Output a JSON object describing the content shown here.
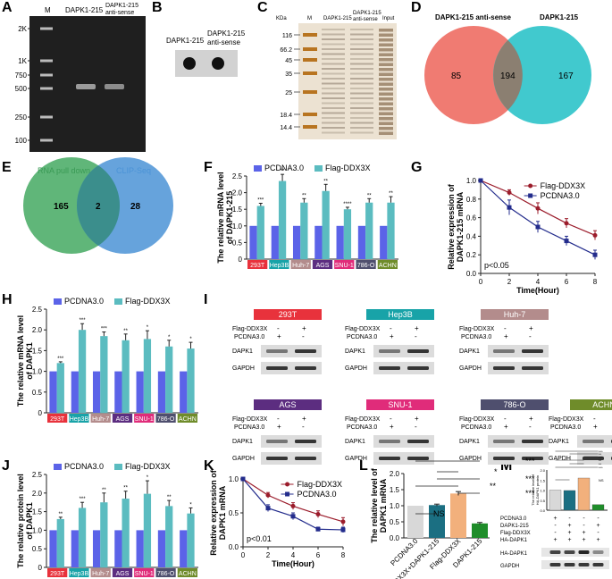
{
  "figure_letters": [
    "A",
    "B",
    "C",
    "D",
    "E",
    "F",
    "G",
    "H",
    "I",
    "J",
    "K",
    "L",
    "M"
  ],
  "colors": {
    "pcdna": "#5b63e8",
    "flag": "#5bbcc0",
    "red": "#9b1c2b",
    "navy": "#232c8c",
    "venn_red": "#f07b72",
    "venn_teal": "#2cc3c9",
    "venn_green": "#4fae6a",
    "venn_blue": "#4b93d6"
  },
  "panelA": {
    "lane_M": "M",
    "lane1": "DAPK1-215",
    "lane2_line1": "DAPK1-215",
    "lane2_line2": "anti-sense",
    "ladder": [
      "2K",
      "1K",
      "750",
      "500",
      "250",
      "100"
    ]
  },
  "panelB": {
    "lane1": "DAPK1-215",
    "lane2_line1": "DAPK1-215",
    "lane2_line2": "anti-sense"
  },
  "panelC": {
    "kda": "KDa",
    "lane_M": "M",
    "lane1": "DAPK1-215",
    "lane2_line1": "DAPK1-215",
    "lane2_line2": "anti-sense",
    "lane3": "Input",
    "markers": [
      "116",
      "66.2",
      "45",
      "35",
      "25",
      "18.4",
      "14.4"
    ]
  },
  "panelD": {
    "left_label": "DAPK1-215 anti-sense",
    "right_label": "DAPK1-215",
    "left": "85",
    "both": "194",
    "right": "167"
  },
  "panelE": {
    "left_label": "RNA pull down",
    "right_label": "CLIP-Seq",
    "left": "165",
    "both": "2",
    "right": "28"
  },
  "cells": [
    "293T",
    "Hep3B",
    "Huh-7",
    "AGS",
    "SNU-1",
    "786-O",
    "ACHN"
  ],
  "cell_colors": [
    "#e8323c",
    "#18a3a8",
    "#b38c8c",
    "#5c2d80",
    "#e02c7a",
    "#4f4f6e",
    "#6f8c2a"
  ],
  "legend": {
    "pcdna": "PCDNA3.0",
    "flag": "Flag-DDX3X"
  },
  "chart_data": [
    {
      "panel": "F",
      "type": "bar",
      "ylabel_line1": "The relative mRNA level",
      "ylabel_line2": "of DAPK1-215",
      "yticks": [
        "0",
        "0.5",
        "1.0",
        "1.5",
        "2.0",
        "2.5"
      ],
      "ylim": [
        0,
        2.5
      ],
      "series": [
        {
          "name": "PCDNA3.0",
          "values": [
            1,
            1,
            1,
            1,
            1,
            1,
            1
          ]
        },
        {
          "name": "Flag-DDX3X",
          "values": [
            1.6,
            2.35,
            1.7,
            2.05,
            1.5,
            1.7,
            1.7
          ],
          "errors": [
            0.08,
            0.2,
            0.12,
            0.2,
            0.06,
            0.12,
            0.18
          ],
          "sig": [
            "***",
            "**",
            "**",
            "**",
            "****",
            "**",
            "**"
          ]
        }
      ]
    },
    {
      "panel": "G",
      "type": "line",
      "ylabel_line1": "Relative expression of",
      "ylabel_line2": "DAPK1-215 mRNA",
      "xlabel": "Time(Hour)",
      "x": [
        0,
        2,
        4,
        6,
        8
      ],
      "xticks": [
        "0",
        "2",
        "4",
        "6",
        "8"
      ],
      "yticks": [
        "0.0",
        "0.2",
        "0.4",
        "0.6",
        "0.8",
        "1.0"
      ],
      "ylim": [
        0,
        1.0
      ],
      "note": "p<0.05",
      "series": [
        {
          "name": "Flag-DDX3X",
          "values": [
            1.0,
            0.87,
            0.7,
            0.54,
            0.41
          ],
          "errors": [
            0,
            0.03,
            0.06,
            0.05,
            0.05
          ]
        },
        {
          "name": "PCDNA3.0",
          "values": [
            1.0,
            0.71,
            0.5,
            0.35,
            0.2
          ],
          "errors": [
            0,
            0.08,
            0.06,
            0.05,
            0.05
          ]
        }
      ]
    },
    {
      "panel": "H",
      "type": "bar",
      "ylabel_line1": "The relative mRNA level",
      "ylabel_line2": "of DAPK1",
      "yticks": [
        "0",
        "0.5",
        "1.0",
        "1.5",
        "2.0",
        "2.5"
      ],
      "ylim": [
        0,
        2.5
      ],
      "series": [
        {
          "name": "PCDNA3.0",
          "values": [
            1,
            1,
            1,
            1,
            1,
            1,
            1
          ]
        },
        {
          "name": "Flag-DDX3X",
          "values": [
            1.2,
            2.0,
            1.85,
            1.75,
            1.78,
            1.6,
            1.55
          ],
          "errors": [
            0.03,
            0.15,
            0.1,
            0.15,
            0.2,
            0.15,
            0.15
          ],
          "sig": [
            "***",
            "***",
            "***",
            "**",
            "*",
            "*",
            "*"
          ]
        }
      ]
    },
    {
      "panel": "J",
      "type": "bar",
      "ylabel_line1": "The relative protein level",
      "ylabel_line2": "of DAPK1",
      "yticks": [
        "0",
        "0.5",
        "1.0",
        "1.5",
        "2.0",
        "2.5"
      ],
      "ylim": [
        0,
        2.5
      ],
      "series": [
        {
          "name": "PCDNA3.0",
          "values": [
            1,
            1,
            1,
            1,
            1,
            1,
            1
          ]
        },
        {
          "name": "Flag-DDX3X",
          "values": [
            1.3,
            1.6,
            1.75,
            1.85,
            1.98,
            1.65,
            1.45
          ],
          "errors": [
            0.05,
            0.15,
            0.25,
            0.2,
            0.35,
            0.15,
            0.15
          ],
          "sig": [
            "**",
            "***",
            "**",
            "**",
            "*",
            "**",
            "*"
          ]
        }
      ]
    },
    {
      "panel": "K",
      "type": "line",
      "ylabel_line1": "Relative expression of",
      "ylabel_line2": "DAPK1 mRNA",
      "xlabel": "Time(Hour)",
      "x": [
        0,
        2,
        4,
        6,
        8
      ],
      "xticks": [
        "0",
        "2",
        "4",
        "6",
        "8"
      ],
      "yticks": [
        "0.0",
        "0.5",
        "1.0"
      ],
      "ylim": [
        0,
        1.0
      ],
      "note": "p<0.01",
      "series": [
        {
          "name": "Flag-DDX3X",
          "values": [
            1.0,
            0.76,
            0.6,
            0.48,
            0.37
          ],
          "errors": [
            0,
            0.04,
            0.05,
            0.05,
            0.06
          ]
        },
        {
          "name": "PCDNA3.0",
          "values": [
            1.0,
            0.57,
            0.45,
            0.26,
            0.25
          ],
          "errors": [
            0,
            0.05,
            0.05,
            0.03,
            0.04
          ]
        }
      ]
    },
    {
      "panel": "L",
      "type": "bar",
      "ylabel_line1": "The relative level of",
      "ylabel_line2": "DAPK1 mRNA",
      "yticks": [
        "0.0",
        "0.5",
        "1.0",
        "1.5",
        "2.0"
      ],
      "ylim": [
        0,
        2.0
      ],
      "categories": [
        "PCDNA3.0",
        "Flag-DDX3X+DAPK1-215",
        "Flag-DDX3X",
        "DAPK1-215"
      ],
      "values": [
        1.0,
        1.02,
        1.38,
        0.45
      ],
      "errors": [
        0,
        0.03,
        0.06,
        0.03
      ],
      "colors": [
        "#d8d8d8",
        "#1b6f82",
        "#f2b07c",
        "#1f8d2a"
      ],
      "comparisons": [
        "***",
        "*",
        "***",
        "**",
        "***",
        "NS"
      ]
    },
    {
      "panel": "M",
      "type": "bar",
      "ylabel_line1": "The relative level of",
      "ylabel_line2": "HA-DAPK1 protein",
      "yticks": [
        "0.0",
        "0.5",
        "1.0",
        "1.5",
        "2.0"
      ],
      "ylim": [
        0,
        2.0
      ],
      "values": [
        1.0,
        0.98,
        1.6,
        0.28
      ],
      "errors": [
        0,
        0.03,
        0.03,
        0.02
      ],
      "colors": [
        "#d8d8d8",
        "#1b6f82",
        "#f2b07c",
        "#1f8d2a"
      ],
      "comparisons": [
        "***",
        "**",
        "***",
        "**",
        "**",
        "***",
        "NS"
      ]
    }
  ],
  "panelI": {
    "blots": [
      {
        "cell": "293T",
        "col": 0
      },
      {
        "cell": "Hep3B",
        "col": 1
      },
      {
        "cell": "Huh-7",
        "col": 2
      },
      {
        "cell": "AGS",
        "col": 0
      },
      {
        "cell": "SNU-1",
        "col": 1
      },
      {
        "cell": "786-O",
        "col": 2
      },
      {
        "cell": "ACHN",
        "col": 3
      }
    ],
    "row_flag": "Flag-DDX3X",
    "row_pcdna": "PCDNA3.0",
    "band1": "DAPK1",
    "band2": "GAPDH",
    "minus": "-",
    "plus": "+"
  },
  "panelM_rows": {
    "labels": [
      "PCDNA3.0",
      "DAPK1-215",
      "Flag-DDX3X",
      "HA-DAPK1"
    ],
    "signs": [
      [
        "+",
        "-",
        "-",
        "-"
      ],
      [
        "-",
        "+",
        "-",
        "+"
      ],
      [
        "-",
        "+",
        "+",
        "-"
      ],
      [
        "+",
        "+",
        "+",
        "+"
      ]
    ],
    "bands": [
      "HA-DAPK1",
      "GAPDH"
    ]
  }
}
